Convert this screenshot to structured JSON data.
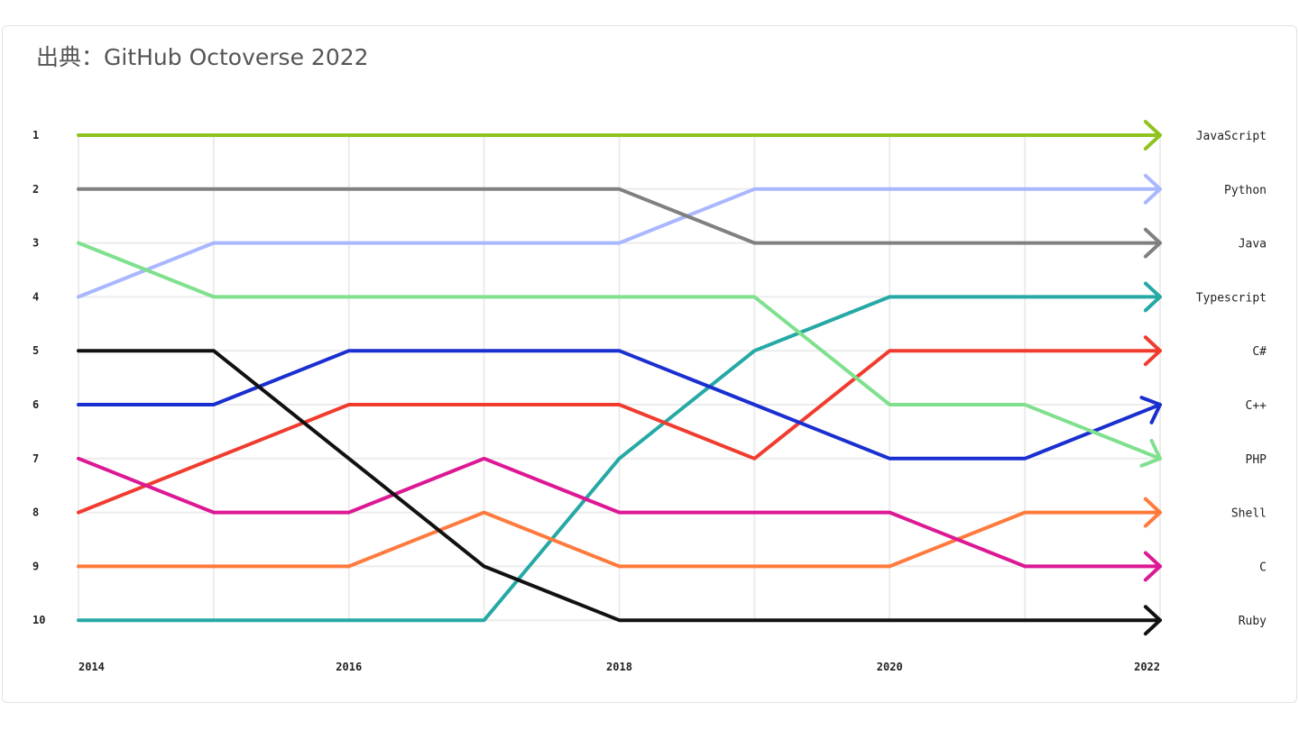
{
  "source_label": "出典：GitHub Octoverse 2022",
  "chart_data": {
    "type": "line",
    "subtype": "bump",
    "x": [
      2014,
      2015,
      2016,
      2017,
      2018,
      2019,
      2020,
      2021,
      2022
    ],
    "x_tick_labels": [
      "2014",
      "2016",
      "2018",
      "2020",
      "2022"
    ],
    "x_tick_values": [
      2014,
      2016,
      2018,
      2020,
      2022
    ],
    "y_tick_labels": [
      "1",
      "2",
      "3",
      "4",
      "5",
      "6",
      "7",
      "8",
      "9",
      "10"
    ],
    "y_inverted": true,
    "grid": "vertical-and-horizontal, light",
    "series": [
      {
        "name": "JavaScript",
        "color": "#8fc31f",
        "values": [
          1,
          1,
          1,
          1,
          1,
          1,
          1,
          1,
          1
        ]
      },
      {
        "name": "Python",
        "color": "#a9b7ff",
        "values": [
          4,
          3,
          3,
          3,
          3,
          2,
          2,
          2,
          2
        ]
      },
      {
        "name": "Java",
        "color": "#808080",
        "values": [
          2,
          2,
          2,
          2,
          2,
          3,
          3,
          3,
          3
        ]
      },
      {
        "name": "Typescript",
        "color": "#26a9a5",
        "values": [
          10,
          10,
          10,
          10,
          7,
          5,
          4,
          4,
          4
        ]
      },
      {
        "name": "C#",
        "color": "#f03c2e",
        "values": [
          8,
          7,
          6,
          6,
          6,
          7,
          5,
          5,
          5
        ]
      },
      {
        "name": "C++",
        "color": "#1a2fd0",
        "values": [
          6,
          6,
          5,
          5,
          5,
          6,
          7,
          7,
          6
        ]
      },
      {
        "name": "PHP",
        "color": "#7fe08e",
        "values": [
          3,
          4,
          4,
          4,
          4,
          4,
          6,
          6,
          7
        ]
      },
      {
        "name": "Shell",
        "color": "#ff7a3d",
        "values": [
          9,
          9,
          9,
          8,
          9,
          9,
          9,
          8,
          8
        ]
      },
      {
        "name": "C",
        "color": "#dc1894",
        "values": [
          7,
          8,
          8,
          7,
          8,
          8,
          8,
          9,
          9
        ]
      },
      {
        "name": "Ruby",
        "color": "#111111",
        "values": [
          5,
          5,
          7,
          9,
          10,
          10,
          10,
          10,
          10
        ]
      }
    ]
  }
}
